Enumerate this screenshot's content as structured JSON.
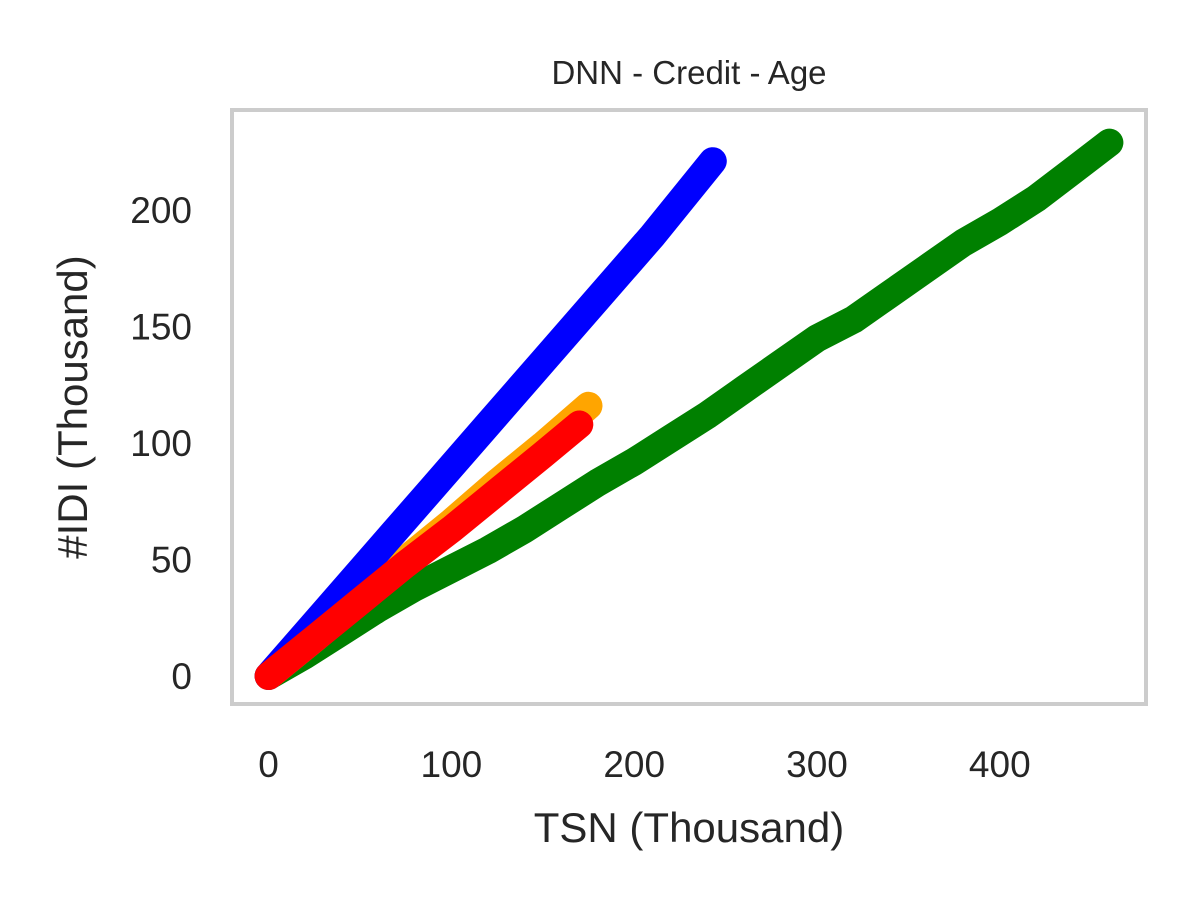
{
  "chart_data": {
    "type": "line",
    "title": "DNN - Credit - Age",
    "xlabel": "TSN (Thousand)",
    "ylabel": "#IDI (Thousand)",
    "xlim": [
      -20,
      480
    ],
    "ylim": [
      -12,
      243
    ],
    "xticks": [
      0,
      100,
      200,
      300,
      400
    ],
    "yticks": [
      0,
      50,
      100,
      150,
      200
    ],
    "grid": false,
    "legend": "none",
    "series": [
      {
        "color": "#008000",
        "x": [
          0,
          20,
          40,
          60,
          80,
          100,
          120,
          140,
          160,
          180,
          200,
          220,
          240,
          260,
          280,
          300,
          320,
          340,
          360,
          380,
          400,
          420,
          440,
          460
        ],
        "y": [
          0,
          9,
          19,
          29,
          38,
          46,
          54,
          63,
          73,
          83,
          92,
          102,
          112,
          123,
          134,
          145,
          153,
          164,
          175,
          186,
          195,
          205,
          217,
          229
        ]
      },
      {
        "color": "#ffa500",
        "x": [
          0,
          25,
          50,
          75,
          100,
          125,
          150,
          175
        ],
        "y": [
          0,
          16,
          33,
          50,
          66,
          83,
          99,
          116
        ]
      },
      {
        "color": "#0000ff",
        "x": [
          0,
          30,
          60,
          90,
          120,
          150,
          180,
          210,
          243
        ],
        "y": [
          0,
          27,
          54,
          81,
          108,
          135,
          162,
          189,
          221
        ]
      },
      {
        "color": "#ff0000",
        "x": [
          0,
          25,
          50,
          75,
          100,
          125,
          150,
          170
        ],
        "y": [
          0,
          16,
          32,
          48,
          63,
          79,
          95,
          108
        ]
      }
    ]
  }
}
